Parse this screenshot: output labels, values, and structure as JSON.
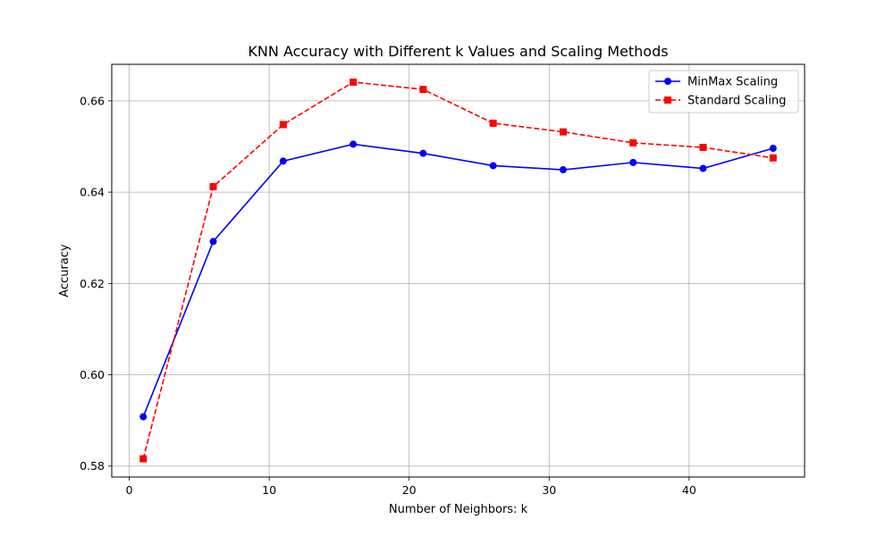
{
  "chart_data": {
    "type": "line",
    "title": "KNN Accuracy with Different k Values and Scaling Methods",
    "xlabel": "Number of Neighbors: k",
    "ylabel": "Accuracy",
    "x": [
      1,
      6,
      11,
      16,
      21,
      26,
      31,
      36,
      41,
      46
    ],
    "xlim": [
      -1.25,
      48.25
    ],
    "ylim": [
      0.5776,
      0.668
    ],
    "xticks": [
      0,
      10,
      20,
      30,
      40
    ],
    "xtick_labels": [
      "0",
      "10",
      "20",
      "30",
      "40"
    ],
    "yticks": [
      0.58,
      0.6,
      0.62,
      0.64,
      0.66
    ],
    "ytick_labels": [
      "0.58",
      "0.60",
      "0.62",
      "0.64",
      "0.66"
    ],
    "grid": true,
    "legend_position": "top-right",
    "series": [
      {
        "name": "MinMax Scaling",
        "color": "#0000ff",
        "line_style": "solid",
        "marker": "circle",
        "values": [
          0.5908,
          0.6292,
          0.6468,
          0.6505,
          0.6485,
          0.6458,
          0.6449,
          0.6465,
          0.6452,
          0.6496
        ]
      },
      {
        "name": "Standard Scaling",
        "color": "#ff0000",
        "line_style": "dashed",
        "marker": "square",
        "values": [
          0.5816,
          0.6412,
          0.6548,
          0.6641,
          0.6625,
          0.6551,
          0.6532,
          0.6508,
          0.6498,
          0.6475
        ]
      }
    ]
  }
}
